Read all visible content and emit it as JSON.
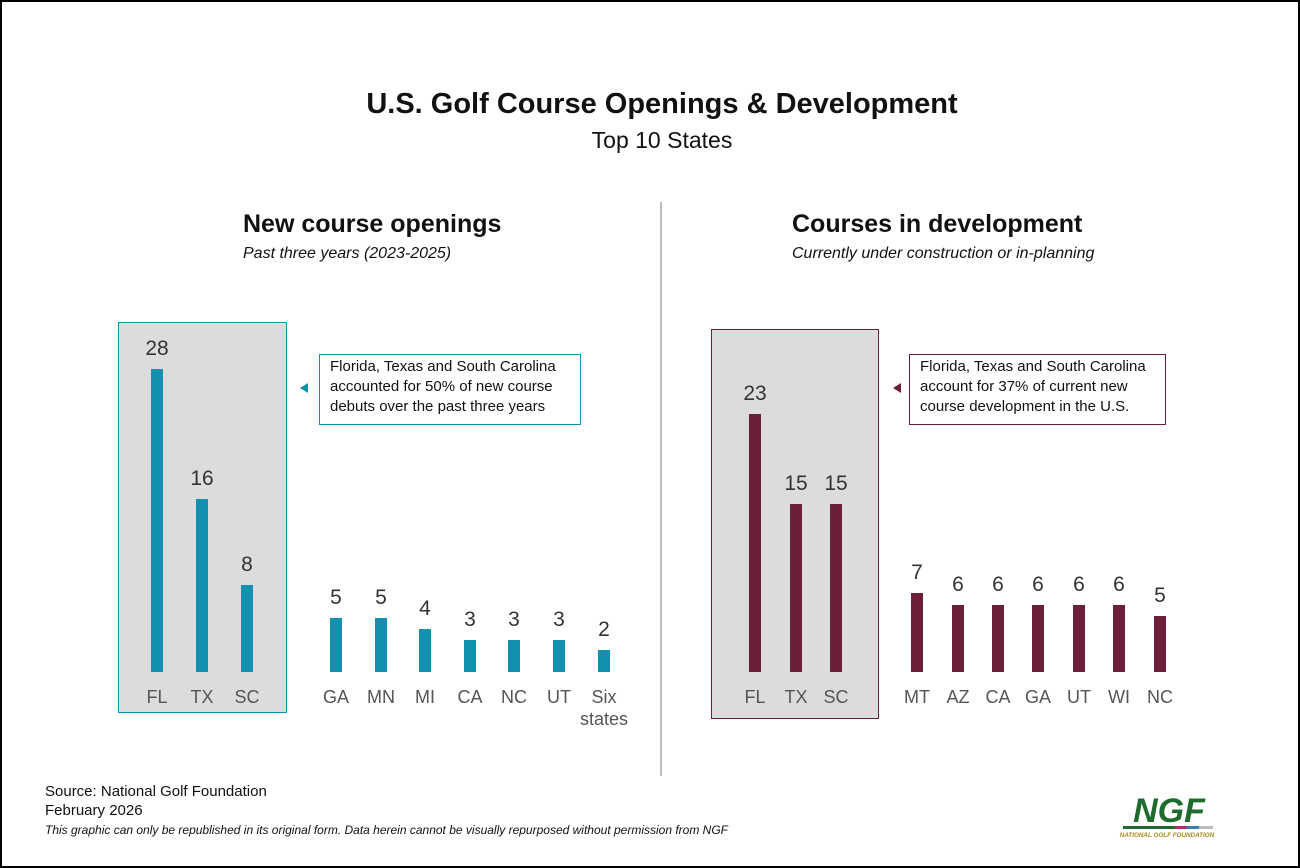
{
  "title": "U.S. Golf Course Openings & Development",
  "subtitle": "Top 10 States",
  "colors": {
    "openings": "#1190b0",
    "development": "#6b1f3a",
    "highlight_bg": "#dcdcdc"
  },
  "chart_data": [
    {
      "type": "bar",
      "title": "New course openings",
      "subtitle": "Past three years (2023-2025)",
      "categories": [
        "FL",
        "TX",
        "SC",
        "GA",
        "MN",
        "MI",
        "CA",
        "NC",
        "UT",
        "Six states"
      ],
      "values": [
        28,
        16,
        8,
        5,
        5,
        4,
        3,
        3,
        3,
        2
      ],
      "highlighted": [
        "FL",
        "TX",
        "SC"
      ],
      "callout": "Florida, Texas and South Carolina accounted for 50% of new course debuts over  the past three years",
      "grid": false,
      "ylim": [
        0,
        28
      ]
    },
    {
      "type": "bar",
      "title": "Courses in development",
      "subtitle": "Currently under construction or in-planning",
      "categories": [
        "FL",
        "TX",
        "SC",
        "MT",
        "AZ",
        "CA",
        "GA",
        "UT",
        "WI",
        "NC"
      ],
      "values": [
        23,
        15,
        15,
        7,
        6,
        6,
        6,
        6,
        6,
        5
      ],
      "highlighted": [
        "FL",
        "TX",
        "SC"
      ],
      "callout": "Florida, Texas and South Carolina account for 37% of current new course development in the U.S.",
      "grid": false,
      "ylim": [
        0,
        23
      ]
    }
  ],
  "footer": {
    "source": "Source: National Golf Foundation",
    "date": "February 2026",
    "disclaimer": "This graphic can only be republished in its original form. Data herein cannot be visually repurposed without permission from NGF"
  },
  "logo": {
    "text": "NGF",
    "subtext": "NATIONAL GOLF FOUNDATION"
  }
}
